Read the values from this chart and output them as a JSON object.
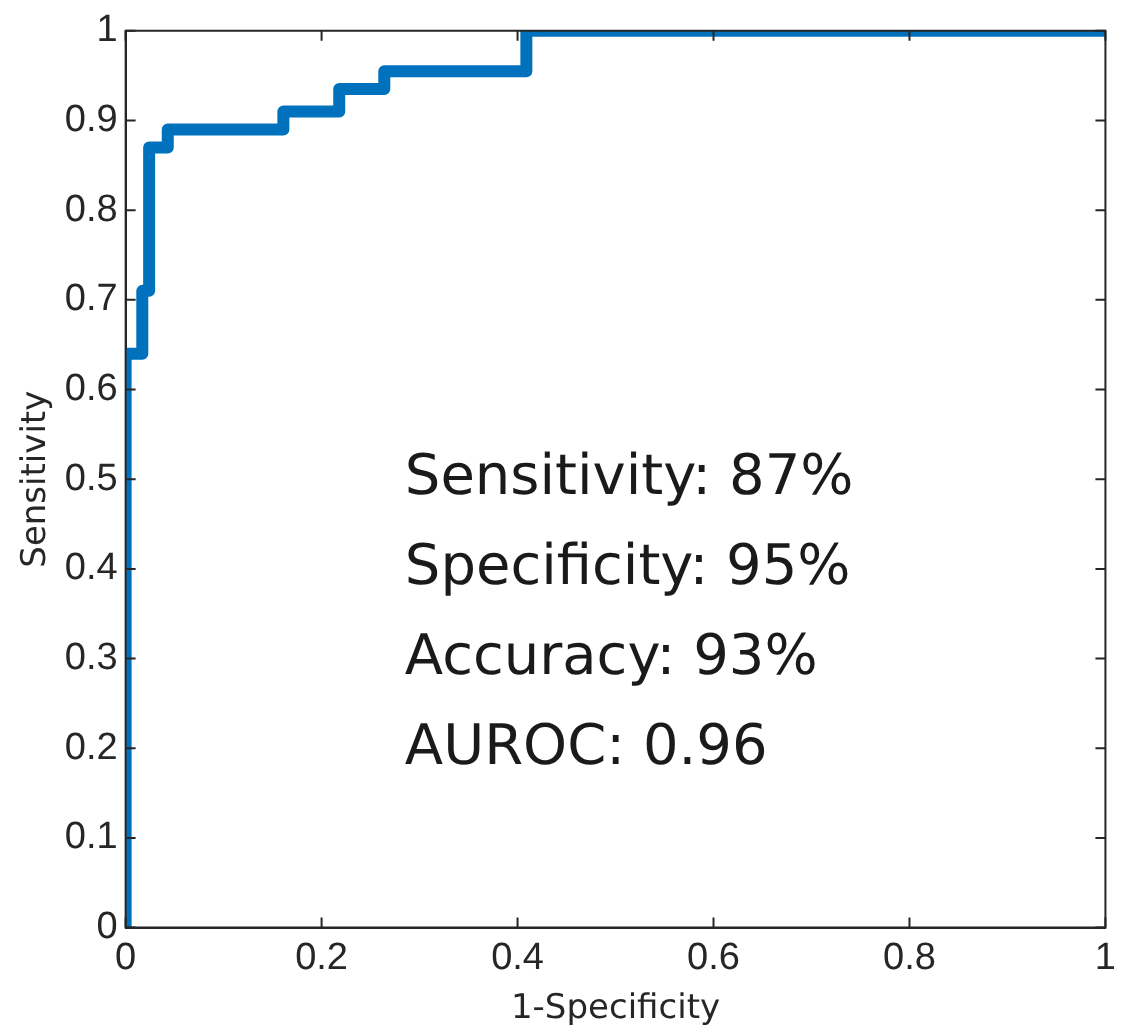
{
  "chart_data": {
    "type": "step",
    "xlabel": "1-Specificity",
    "ylabel": "Sensitivity",
    "series": [
      {
        "color": "#0072bd",
        "x": [
          0,
          0,
          0.017,
          0.024,
          0.043,
          0.161,
          0.218,
          0.264,
          0.409,
          1
        ],
        "values": [
          0,
          0.64,
          0.71,
          0.87,
          0.89,
          0.91,
          0.935,
          0.955,
          1,
          1
        ]
      }
    ],
    "xlim": [
      0,
      1
    ],
    "xticks": [
      0,
      0.2,
      0.4,
      0.6,
      0.8,
      1
    ],
    "ylim": [
      0,
      1
    ],
    "yticks": [
      0,
      0.1,
      0.2,
      0.3,
      0.4,
      0.5,
      0.6,
      0.7,
      0.8,
      0.9,
      1
    ],
    "grid": false,
    "legend": false,
    "marker": "none",
    "line_style": "solid",
    "annotations": [
      "Sensitivity: 87%",
      "Specificity: 95%",
      "Accuracy: 93%",
      "AUROC: 0.96"
    ]
  }
}
